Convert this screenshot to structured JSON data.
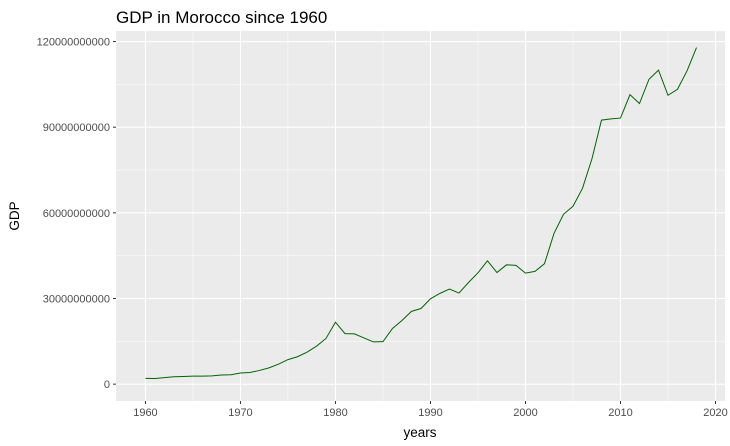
{
  "chart_data": {
    "type": "line",
    "title": "GDP in Morocco since 1960",
    "xlabel": "years",
    "ylabel": "GDP",
    "xlim": [
      1956.9,
      2021.0
    ],
    "ylim": [
      -5900000000,
      123700000000
    ],
    "x_ticks": [
      1960,
      1970,
      1980,
      1990,
      2000,
      2010,
      2020
    ],
    "y_ticks": [
      0,
      30000000000,
      60000000000,
      90000000000,
      120000000000
    ],
    "x_tick_labels": [
      "1960",
      "1970",
      "1980",
      "1990",
      "2000",
      "2010",
      "2020"
    ],
    "y_tick_labels": [
      "0",
      "30000000000",
      "60000000000",
      "90000000000",
      "120000000000"
    ],
    "grid": true,
    "colors": {
      "panel": "#ebebeb",
      "grid": "#ffffff",
      "line": "#006400",
      "text": "#4d4d4d"
    },
    "series": [
      {
        "x": [
          1960,
          1961,
          1962,
          1963,
          1964,
          1965,
          1966,
          1967,
          1968,
          1969,
          1970,
          1971,
          1972,
          1973,
          1974,
          1975,
          1976,
          1977,
          1978,
          1979,
          1980,
          1981,
          1982,
          1983,
          1984,
          1985,
          1986,
          1987,
          1988,
          1989,
          1990,
          1991,
          1992,
          1993,
          1994,
          1995,
          1996,
          1997,
          1998,
          1999,
          2000,
          2001,
          2002,
          2003,
          2004,
          2005,
          2006,
          2007,
          2008,
          2009,
          2010,
          2011,
          2012,
          2013,
          2014,
          2015,
          2016,
          2017,
          2018
        ],
        "y": [
          2040000000,
          2000000000,
          2300000000,
          2600000000,
          2700000000,
          2800000000,
          2800000000,
          2900000000,
          3200000000,
          3300000000,
          3900000000,
          4100000000,
          4800000000,
          5700000000,
          7000000000,
          8600000000,
          9600000000,
          11200000000,
          13300000000,
          16000000000,
          21700000000,
          17700000000,
          17600000000,
          16200000000,
          14800000000,
          14900000000,
          19500000000,
          22300000000,
          25500000000,
          26500000000,
          29900000000,
          31800000000,
          33300000000,
          31900000000,
          35600000000,
          39000000000,
          43200000000,
          39100000000,
          41800000000,
          41600000000,
          38900000000,
          39500000000,
          42200000000,
          52800000000,
          59500000000,
          62300000000,
          68600000000,
          79000000000,
          92500000000,
          92900000000,
          93200000000,
          101400000000,
          98300000000,
          106800000000,
          110000000000,
          101200000000,
          103300000000,
          109700000000,
          117900000000
        ]
      }
    ]
  }
}
